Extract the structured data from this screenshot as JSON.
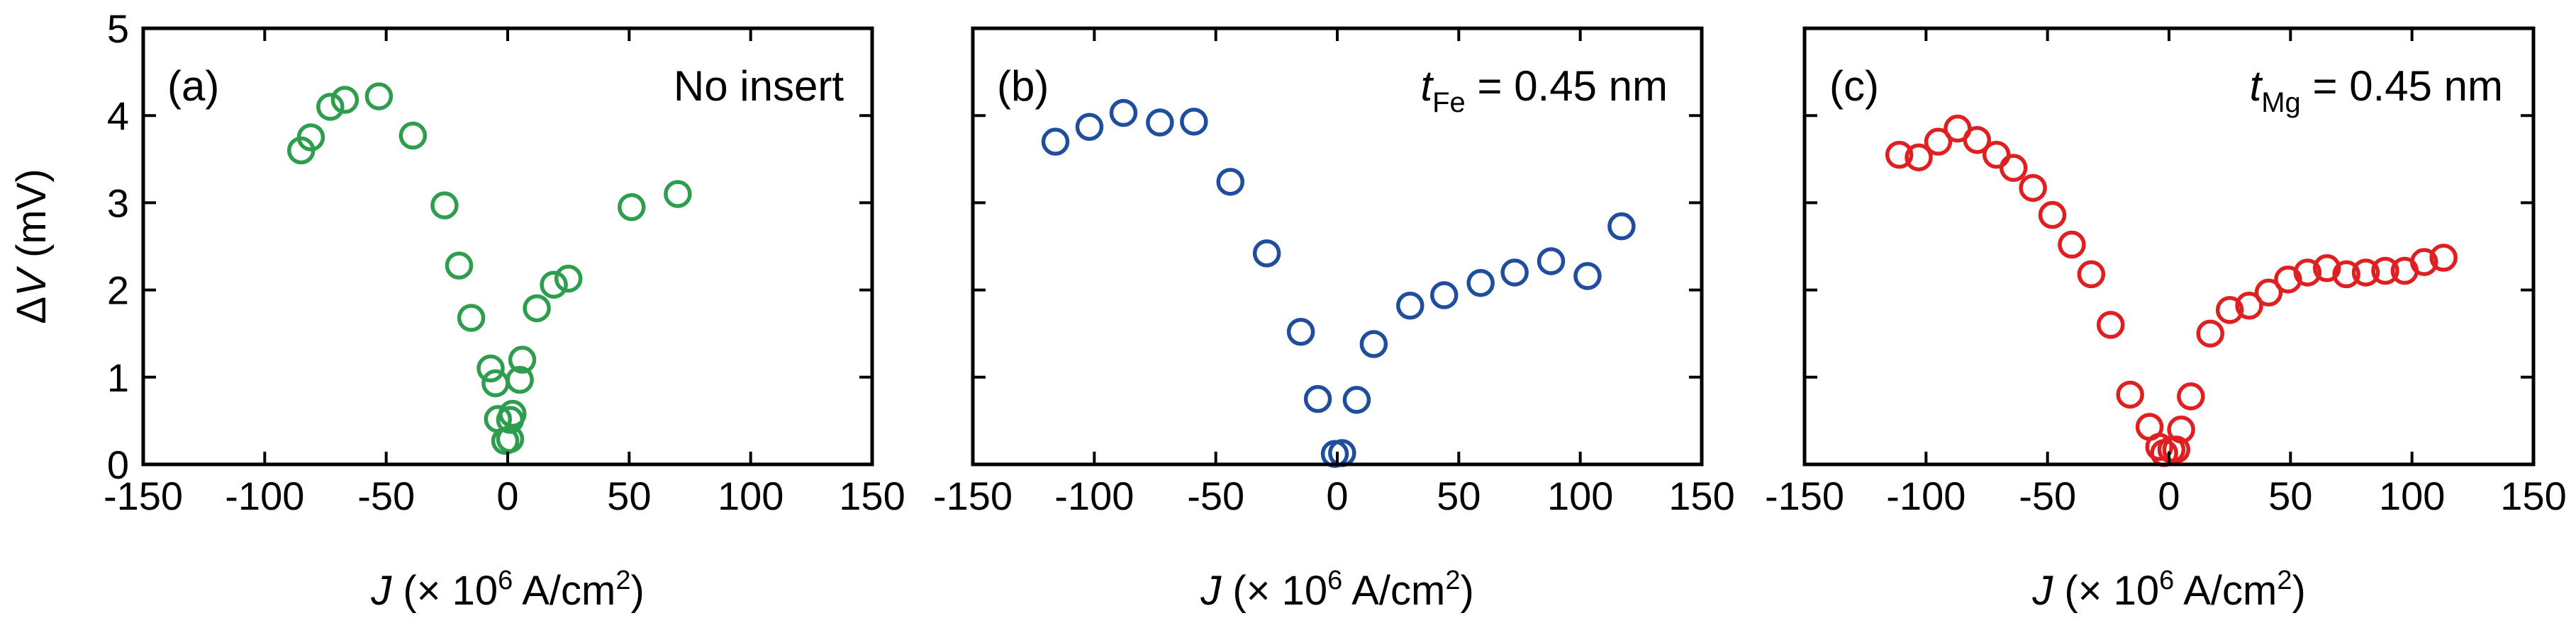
{
  "chart_data": [
    {
      "type": "scatter",
      "panel_label": "(a)",
      "annotation": {
        "text": "No insert"
      },
      "color": "#2e9e4e",
      "xlabel": {
        "var": "J",
        "pre": " (× 10",
        "exp": "6",
        "mid": " A/cm",
        "exp2": "2",
        "post": ")"
      },
      "ylabel": {
        "delta": "Δ",
        "var": "V",
        "units": " (mV)"
      },
      "xlim": [
        -150,
        150
      ],
      "ylim": [
        0,
        5
      ],
      "xticks": [
        -150,
        -100,
        -50,
        0,
        50,
        100,
        150
      ],
      "yticks": [
        0,
        1,
        2,
        3,
        4,
        5
      ],
      "x": [
        -85,
        -81,
        -73,
        -67,
        -53,
        -39,
        -26,
        -20,
        -15,
        -7,
        -5,
        -4,
        -1,
        1,
        1,
        2,
        5,
        6,
        12,
        19,
        25,
        51,
        70
      ],
      "y": [
        3.6,
        3.75,
        4.1,
        4.18,
        4.22,
        3.77,
        2.97,
        2.28,
        1.68,
        1.1,
        0.93,
        0.52,
        0.27,
        0.29,
        0.51,
        0.58,
        0.97,
        1.2,
        1.79,
        2.06,
        2.13,
        2.95,
        3.1
      ]
    },
    {
      "type": "scatter",
      "panel_label": "(b)",
      "annotation": {
        "var": "t",
        "sub": "Fe",
        "value": " = 0.45 nm"
      },
      "color": "#1f4e9e",
      "xlabel": {
        "var": "J",
        "pre": " (× 10",
        "exp": "6",
        "mid": " A/cm",
        "exp2": "2",
        "post": ")"
      },
      "xlim": [
        -150,
        150
      ],
      "ylim": [
        0,
        5
      ],
      "xticks": [
        -150,
        -100,
        -50,
        0,
        50,
        100,
        150
      ],
      "yticks": [
        0,
        1,
        2,
        3,
        4,
        5
      ],
      "x": [
        -116,
        -102,
        -88,
        -73,
        -59,
        -44,
        -29,
        -15,
        -8,
        -1,
        2,
        8,
        15,
        30,
        44,
        59,
        73,
        88,
        103,
        117
      ],
      "y": [
        3.7,
        3.87,
        4.03,
        3.92,
        3.93,
        3.24,
        2.42,
        1.52,
        0.75,
        0.12,
        0.13,
        0.74,
        1.38,
        1.82,
        1.94,
        2.08,
        2.2,
        2.33,
        2.16,
        2.73
      ]
    },
    {
      "type": "scatter",
      "panel_label": "(c)",
      "annotation": {
        "var": "t",
        "sub": "Mg",
        "value": " = 0.45 nm"
      },
      "color": "#e02020",
      "xlabel": {
        "var": "J",
        "pre": " (× 10",
        "exp": "6",
        "mid": " A/cm",
        "exp2": "2",
        "post": ")"
      },
      "xlim": [
        -150,
        150
      ],
      "ylim": [
        0,
        5
      ],
      "xticks": [
        -150,
        -100,
        -50,
        0,
        50,
        100,
        150
      ],
      "yticks": [
        0,
        1,
        2,
        3,
        4,
        5
      ],
      "x": [
        -111,
        -103,
        -95,
        -87,
        -79,
        -71,
        -64,
        -56,
        -48,
        -40,
        -32,
        -24,
        -16,
        -8,
        -4,
        -2,
        1,
        3,
        5,
        9,
        17,
        25,
        33,
        41,
        49,
        57,
        65,
        73,
        81,
        89,
        97,
        105,
        113
      ],
      "y": [
        3.55,
        3.52,
        3.7,
        3.85,
        3.72,
        3.55,
        3.4,
        3.17,
        2.86,
        2.52,
        2.18,
        1.6,
        0.8,
        0.43,
        0.2,
        0.13,
        0.17,
        0.17,
        0.4,
        0.78,
        1.5,
        1.77,
        1.82,
        1.97,
        2.12,
        2.2,
        2.25,
        2.18,
        2.2,
        2.22,
        2.22,
        2.32,
        2.37
      ]
    }
  ]
}
